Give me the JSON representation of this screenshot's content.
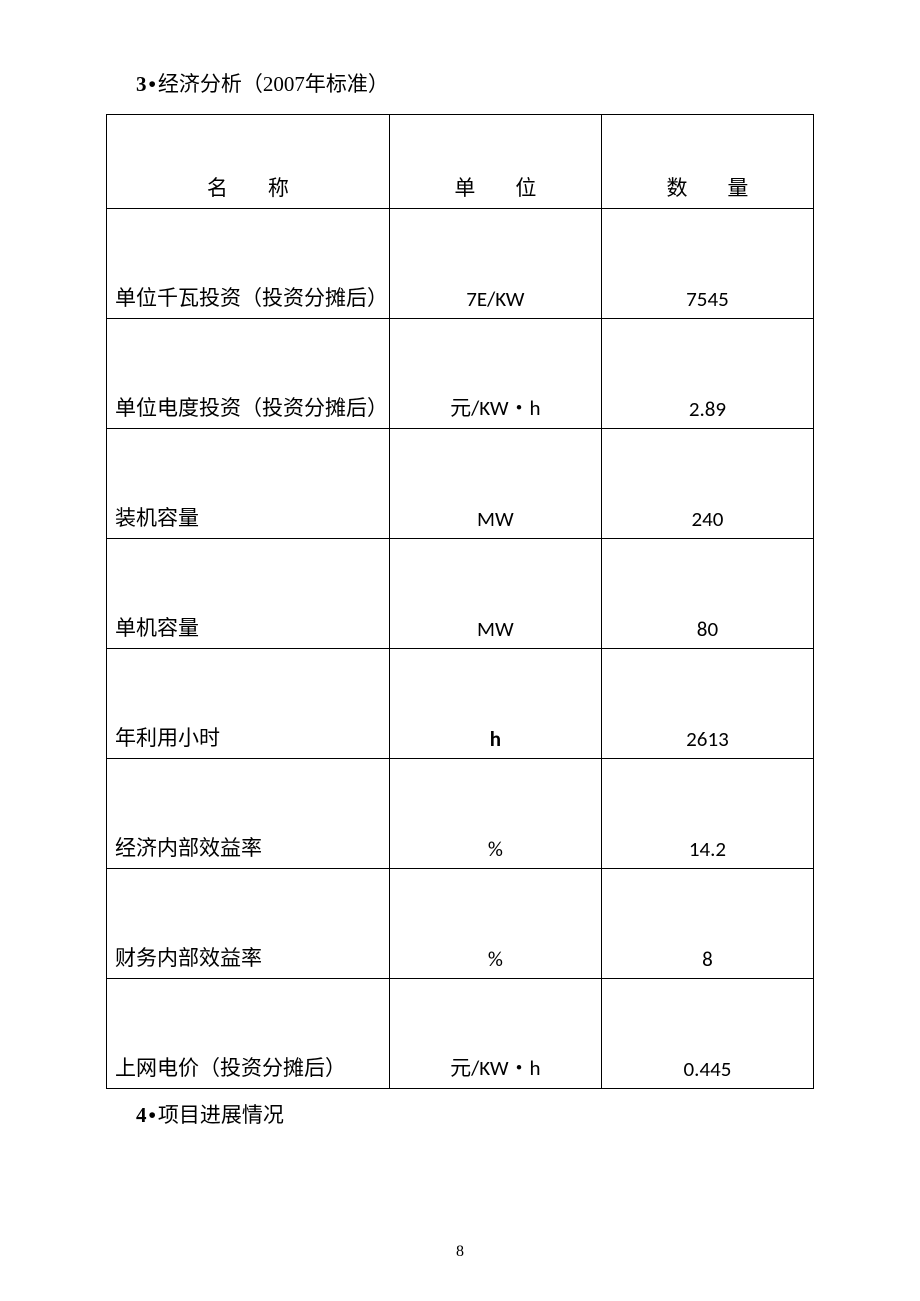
{
  "heading3": {
    "num": "3",
    "dot": "•",
    "text": "经济分析（2007年标准）"
  },
  "table": {
    "columns": {
      "name": "名称",
      "unit": "单位",
      "qty": "数量"
    },
    "rows": [
      {
        "name": "单位千瓦投资（投资分摊后）",
        "unit": "7E/KW",
        "qty": "7545"
      },
      {
        "name": "单位电度投资（投资分摊后）",
        "unit": "元/KW・h",
        "qty": "2.89"
      },
      {
        "name": "装机容量",
        "unit": "MW",
        "qty": "240"
      },
      {
        "name": "单机容量",
        "unit": "MW",
        "qty": "80"
      },
      {
        "name": "年利用小时",
        "unit": "h",
        "qty": "2613"
      },
      {
        "name": "经济内部效益率",
        "unit": "%",
        "qty": "14.2"
      },
      {
        "name": "财务内部效益率",
        "unit": "%",
        "qty": "8"
      },
      {
        "name": "上网电价（投资分摊后）",
        "unit": "元/KW・h",
        "qty": "0.445"
      }
    ]
  },
  "heading4": {
    "num": "4",
    "dot": "•",
    "text": "项目进展情况"
  },
  "page_number": "8",
  "styles": {
    "background_color": "#ffffff",
    "text_color": "#000000",
    "border_color": "#000000",
    "body_fontsize": 21,
    "pagenum_fontsize": 16
  }
}
